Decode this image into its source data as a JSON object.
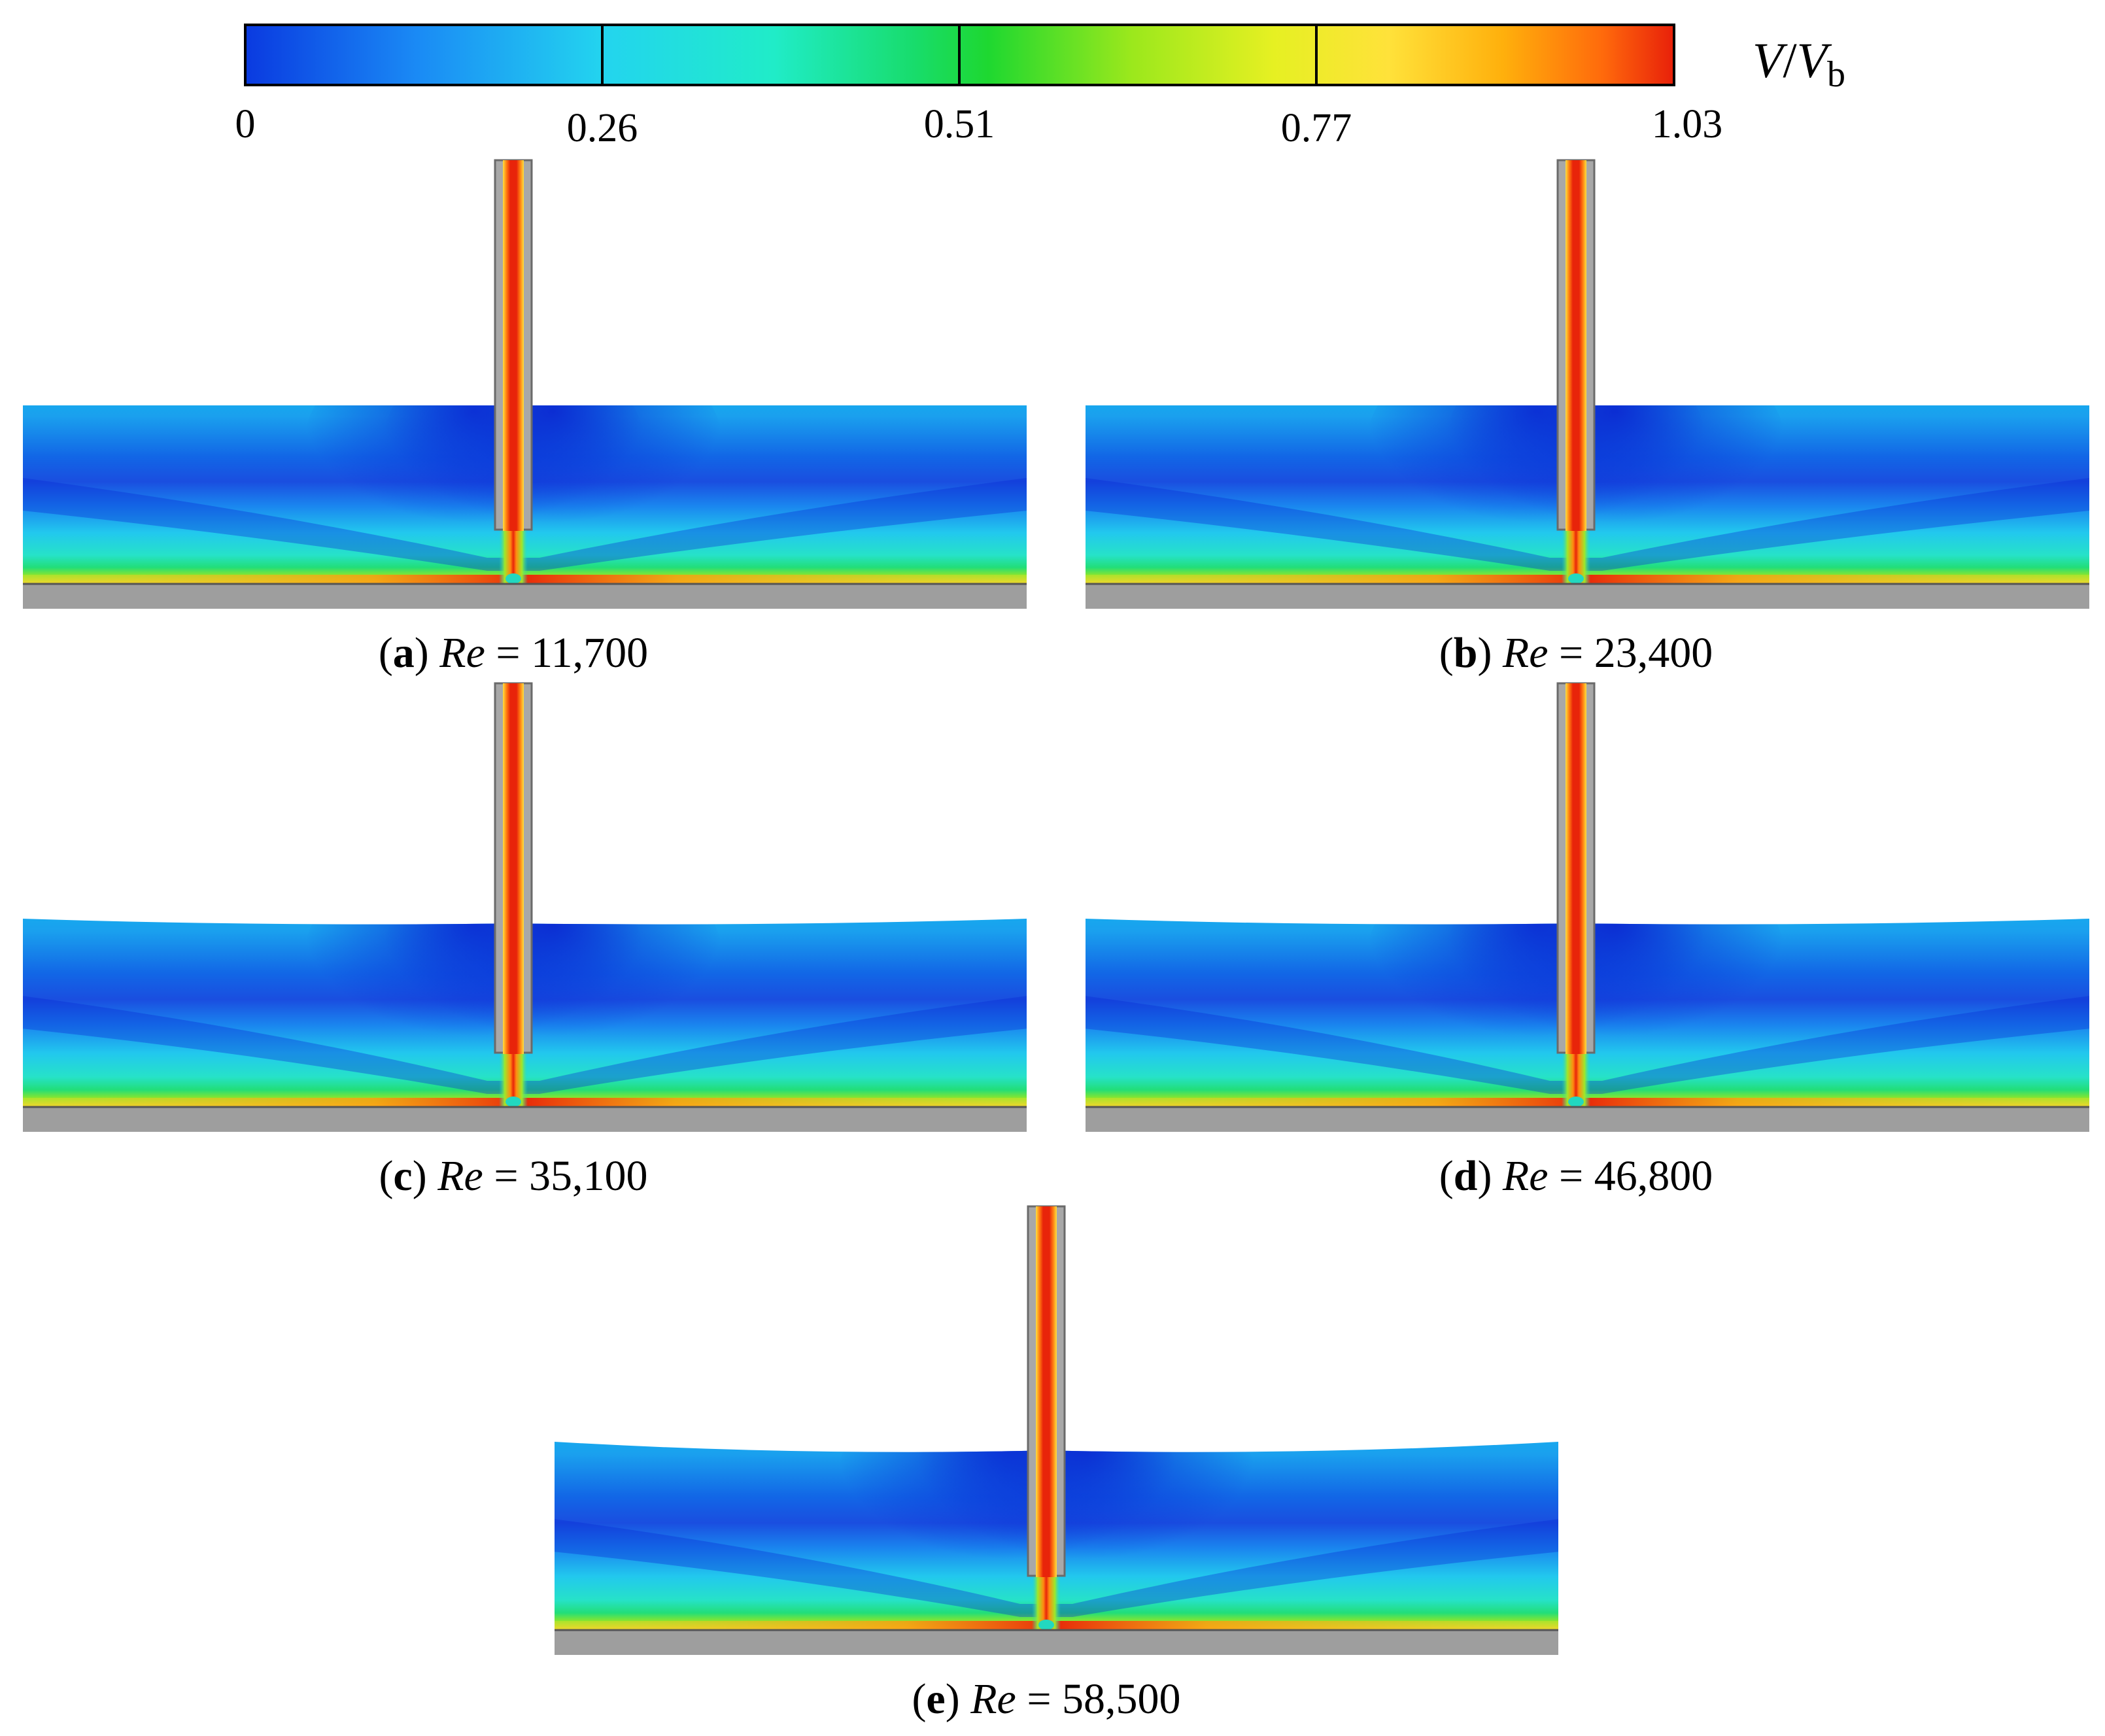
{
  "colorbar": {
    "title_italic_v": "V",
    "title_slash": "/",
    "title_italic_vb": "V",
    "title_subscript": "b",
    "tick_labels": [
      "0",
      "0.26",
      "0.51",
      "0.77",
      "1.03"
    ],
    "tick_values": [
      0,
      0.26,
      0.51,
      0.77,
      1.03
    ],
    "range": [
      0,
      1.03
    ],
    "colors": [
      "#0a2ad8",
      "#1584f2",
      "#22d3ee",
      "#1fe9b8",
      "#11d14a",
      "#6fe01c",
      "#d6ee1c",
      "#ffe135",
      "#ffb40a",
      "#ff6a0a",
      "#e8240a"
    ]
  },
  "panels": [
    {
      "letter": "a",
      "re_label": "Re",
      "equals": " = ",
      "re_value": "11,700"
    },
    {
      "letter": "b",
      "re_label": "Re",
      "equals": " = ",
      "re_value": "23,400"
    },
    {
      "letter": "c",
      "re_label": "Re",
      "equals": " = ",
      "re_value": "35,100"
    },
    {
      "letter": "d",
      "re_label": "Re",
      "equals": " = ",
      "re_value": "46,800"
    },
    {
      "letter": "e",
      "re_label": "Re",
      "equals": " = ",
      "re_value": "58,500"
    }
  ],
  "colors": {
    "wall_gray": "#9e9e9e",
    "nozzle_gray": "#a8a8a8",
    "jet_core": "#e8240a",
    "background": "#ffffff"
  }
}
